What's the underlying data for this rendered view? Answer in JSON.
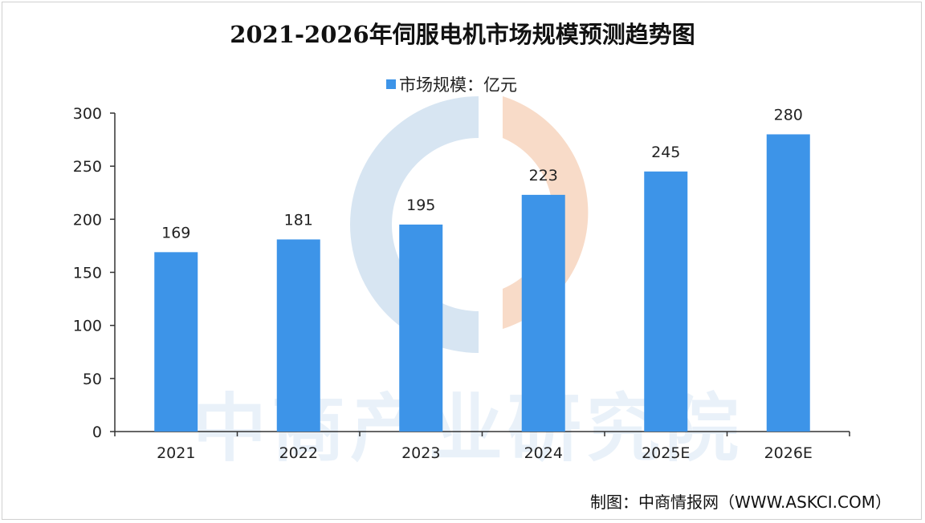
{
  "colors": {
    "bar": "#3d94e8",
    "axis": "#333333",
    "watermark_blue": "#c9dcee",
    "watermark_orange": "#f5cfb6"
  },
  "credit": {
    "label": "制图：",
    "source": "中商情报网（WWW.ASKCI.COM）"
  },
  "watermark": {
    "text": "中商产业研究院",
    "logo": "askci-logo-watermark"
  },
  "chart_data": {
    "type": "bar",
    "title": "2021-2026年伺服电机市场规模预测趋势图",
    "categories": [
      "2021",
      "2022",
      "2023",
      "2024",
      "2025E",
      "2026E"
    ],
    "series": [
      {
        "name": "市场规模：亿元",
        "values": [
          169,
          181,
          195,
          223,
          245,
          280
        ]
      }
    ],
    "ylim": [
      0,
      300
    ],
    "yticks": [
      0,
      50,
      100,
      150,
      200,
      250,
      300
    ],
    "xlabel": "",
    "ylabel": "",
    "grid": false,
    "legend": "top-center",
    "data_labels": true
  }
}
